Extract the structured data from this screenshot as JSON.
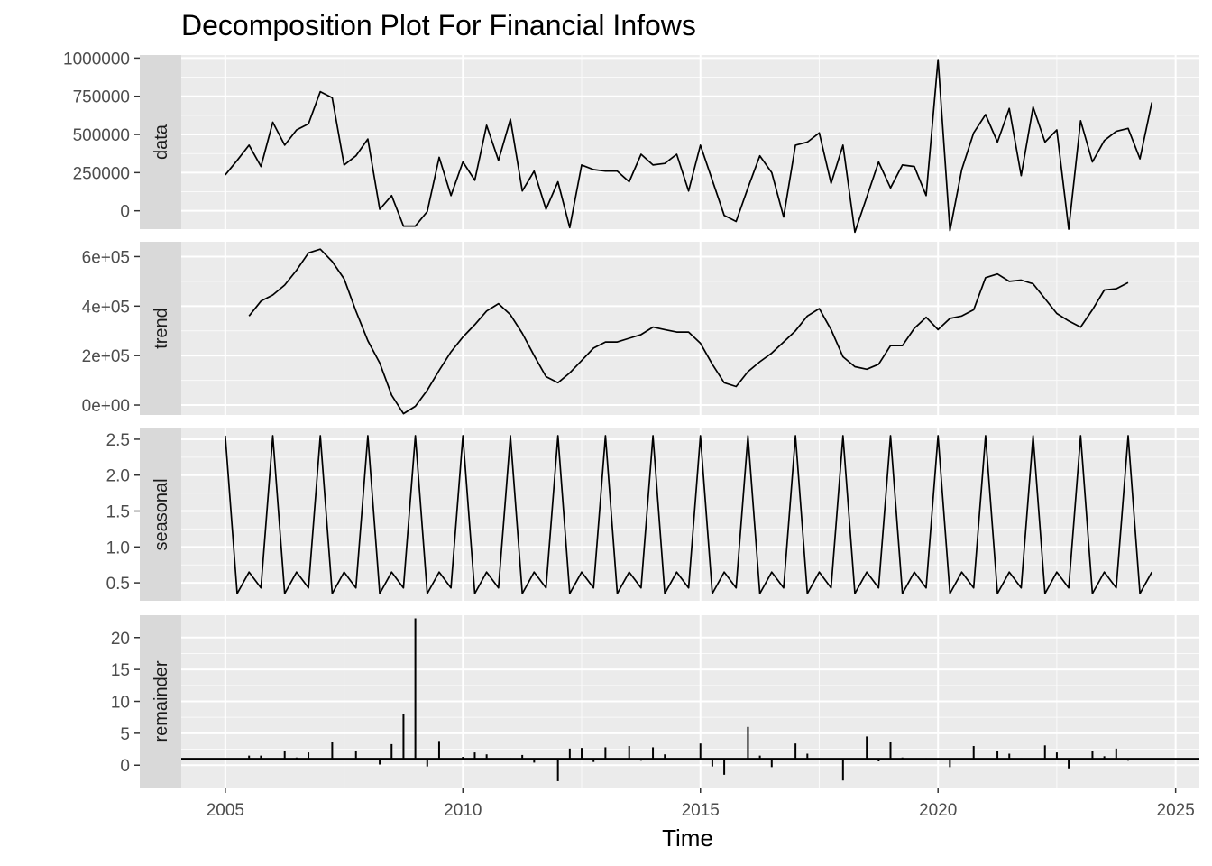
{
  "chart_data": {
    "type": "line",
    "title": "Decomposition Plot For Financial Infows",
    "xlabel": "Time",
    "xlim": [
      2003.2,
      2025.5
    ],
    "xticks": [
      2005,
      2010,
      2015,
      2020,
      2025
    ],
    "grid": true,
    "panels": [
      {
        "name": "data",
        "ylim": [
          -120000,
          1020000
        ],
        "yticks": [
          0,
          250000,
          500000,
          750000,
          1000000
        ],
        "ytick_labels": [
          "0",
          "250000",
          "500000",
          "750000",
          "1000000"
        ],
        "start": 2005.0,
        "step": 0.25,
        "values": [
          235000,
          330000,
          430000,
          290000,
          580000,
          430000,
          530000,
          570000,
          780000,
          740000,
          300000,
          360000,
          470000,
          10000,
          100000,
          -100000,
          -100000,
          -5000,
          350000,
          100000,
          320000,
          200000,
          560000,
          330000,
          600000,
          130000,
          260000,
          10000,
          190000,
          -110000,
          300000,
          270000,
          260000,
          260000,
          190000,
          370000,
          300000,
          310000,
          370000,
          130000,
          430000,
          200000,
          -30000,
          -70000,
          150000,
          360000,
          250000,
          -40000,
          430000,
          450000,
          510000,
          180000,
          430000,
          -140000,
          90000,
          320000,
          150000,
          300000,
          290000,
          100000,
          990000,
          -130000,
          270000,
          510000,
          630000,
          450000,
          670000,
          230000,
          680000,
          450000,
          530000,
          -120000,
          590000,
          320000,
          460000,
          520000,
          540000,
          340000,
          710000
        ]
      },
      {
        "name": "trend",
        "ylim": [
          -40000,
          660000
        ],
        "yticks": [
          0,
          200000,
          400000,
          600000
        ],
        "ytick_labels": [
          "0e+00",
          "2e+05",
          "4e+05",
          "6e+05"
        ],
        "start": 2005.5,
        "step": 0.25,
        "values": [
          360000,
          420000,
          445000,
          485000,
          545000,
          615000,
          630000,
          580000,
          510000,
          380000,
          260000,
          170000,
          40000,
          -35000,
          -5000,
          60000,
          140000,
          215000,
          275000,
          325000,
          380000,
          410000,
          365000,
          290000,
          200000,
          115000,
          90000,
          130000,
          180000,
          230000,
          255000,
          255000,
          270000,
          285000,
          315000,
          305000,
          295000,
          295000,
          250000,
          165000,
          90000,
          75000,
          135000,
          175000,
          210000,
          255000,
          300000,
          360000,
          390000,
          305000,
          195000,
          155000,
          145000,
          165000,
          240000,
          240000,
          310000,
          355000,
          305000,
          350000,
          360000,
          385000,
          515000,
          530000,
          500000,
          505000,
          490000,
          430000,
          370000,
          340000,
          315000,
          385000,
          465000,
          470000,
          495000
        ]
      },
      {
        "name": "seasonal",
        "ylim": [
          0.25,
          2.65
        ],
        "yticks": [
          0.5,
          1.0,
          1.5,
          2.0,
          2.5
        ],
        "ytick_labels": [
          "0.5",
          "1.0",
          "1.5",
          "2.0",
          "2.5"
        ],
        "start": 2005.0,
        "step": 0.25,
        "pattern": [
          2.55,
          0.35,
          0.65,
          0.43
        ],
        "count": 79
      },
      {
        "name": "remainder",
        "ylim": [
          -3.5,
          23.5
        ],
        "yticks": [
          0,
          5,
          10,
          15,
          20
        ],
        "ytick_labels": [
          "0",
          "5",
          "10",
          "15",
          "20"
        ],
        "baseline": 1,
        "start": 2005.0,
        "step": 0.25,
        "values": [
          1,
          1,
          1.5,
          1.5,
          1,
          2.3,
          1.2,
          2,
          0.8,
          3.6,
          1,
          2.3,
          1,
          0.1,
          3.3,
          8,
          23,
          -0.2,
          3.8,
          1,
          1.3,
          2,
          1.7,
          0.8,
          1.1,
          1.6,
          0.4,
          1,
          -2.5,
          2.6,
          2.7,
          0.5,
          2.8,
          1,
          3,
          0.7,
          2.8,
          1.7,
          1,
          1,
          3.4,
          -0.2,
          -1.5,
          0.9,
          6,
          1.5,
          -0.3,
          0.8,
          3.4,
          1.8,
          1.1,
          1,
          -2.4,
          1,
          4.5,
          0.6,
          3.6,
          1.2,
          1,
          1.1,
          1,
          -0.3,
          1,
          3,
          0.8,
          2.2,
          1.8,
          1.1,
          0.9,
          3.1,
          2,
          -0.5,
          0.9,
          2.2,
          1.4,
          2.6,
          0.7,
          1,
          1
        ]
      }
    ]
  }
}
